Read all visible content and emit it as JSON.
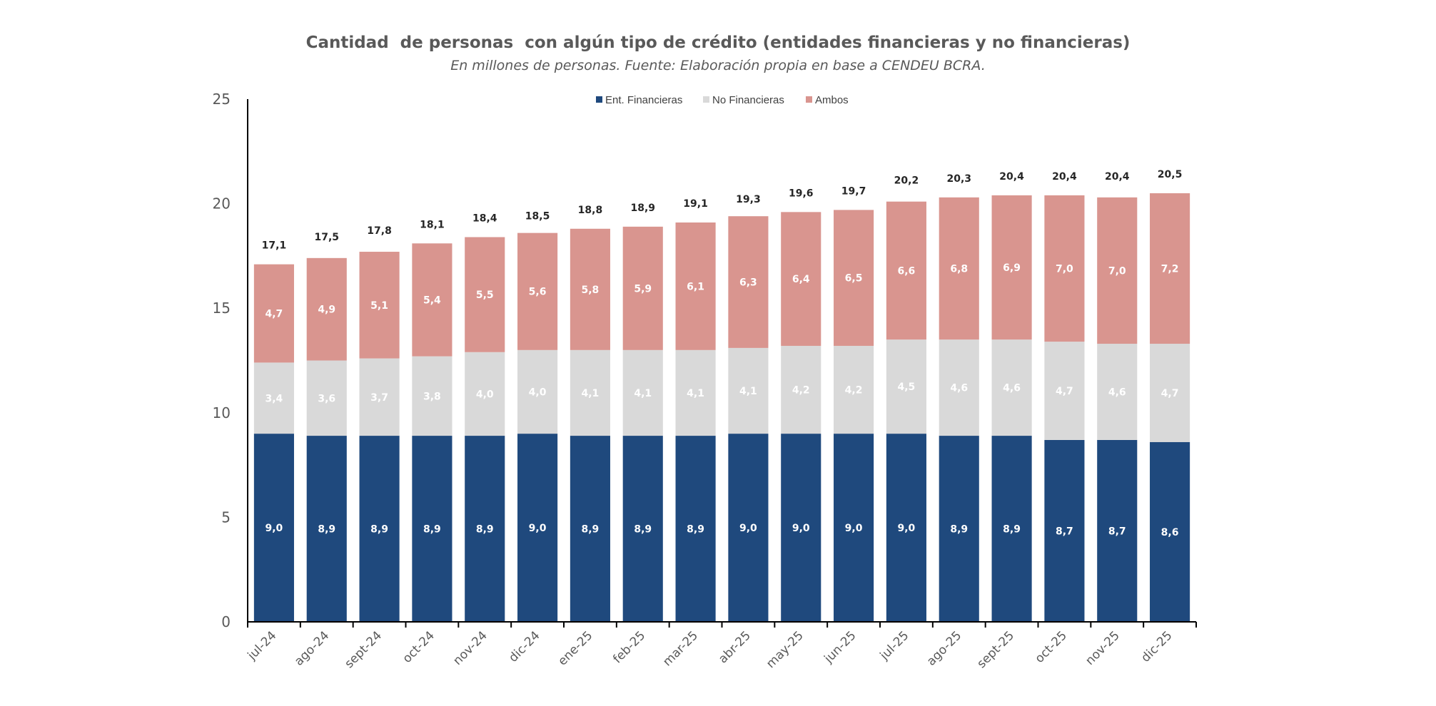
{
  "chart_data": {
    "type": "bar",
    "stacked": true,
    "title": "Cantidad  de personas  con algún tipo de crédito (entidades financieras y no financieras)",
    "subtitle": "En millones de personas. Fuente: Elaboración propia en base a CENDEU BCRA.",
    "xlabel": "",
    "ylabel": "",
    "ylim": [
      0,
      25
    ],
    "yticks": [
      0,
      5,
      10,
      15,
      20,
      25
    ],
    "grid": false,
    "legend_position": "top-center",
    "decimal_separator": ",",
    "categories": [
      "jul-24",
      "ago-24",
      "sept-24",
      "oct-24",
      "nov-24",
      "dic-24",
      "ene-25",
      "feb-25",
      "mar-25",
      "abr-25",
      "may-25",
      "jun-25",
      "jul-25",
      "ago-25",
      "sept-25",
      "oct-25",
      "nov-25",
      "dic-25"
    ],
    "series": [
      {
        "name": "Ent. Financieras",
        "color": "#1F497D",
        "label_color": "#FFFFFF",
        "values": [
          9.0,
          8.9,
          8.9,
          8.9,
          8.9,
          9.0,
          8.9,
          8.9,
          8.9,
          9.0,
          9.0,
          9.0,
          9.0,
          8.9,
          8.9,
          8.7,
          8.7,
          8.6
        ]
      },
      {
        "name": "No Financieras",
        "color": "#D9D9D9",
        "label_color": "#FFFFFF",
        "values": [
          3.4,
          3.6,
          3.7,
          3.8,
          4.0,
          4.0,
          4.1,
          4.1,
          4.1,
          4.1,
          4.2,
          4.2,
          4.5,
          4.6,
          4.6,
          4.7,
          4.6,
          4.7
        ]
      },
      {
        "name": "Ambos",
        "color": "#D9958F",
        "label_color": "#FFFFFF",
        "values": [
          4.7,
          4.9,
          5.1,
          5.4,
          5.5,
          5.6,
          5.8,
          5.9,
          6.1,
          6.3,
          6.4,
          6.5,
          6.6,
          6.8,
          6.9,
          7.0,
          7.0,
          7.2
        ]
      }
    ],
    "totals": [
      17.1,
      17.5,
      17.8,
      18.1,
      18.4,
      18.5,
      18.8,
      18.9,
      19.1,
      19.3,
      19.6,
      19.7,
      20.2,
      20.3,
      20.4,
      20.4,
      20.4,
      20.5
    ]
  }
}
